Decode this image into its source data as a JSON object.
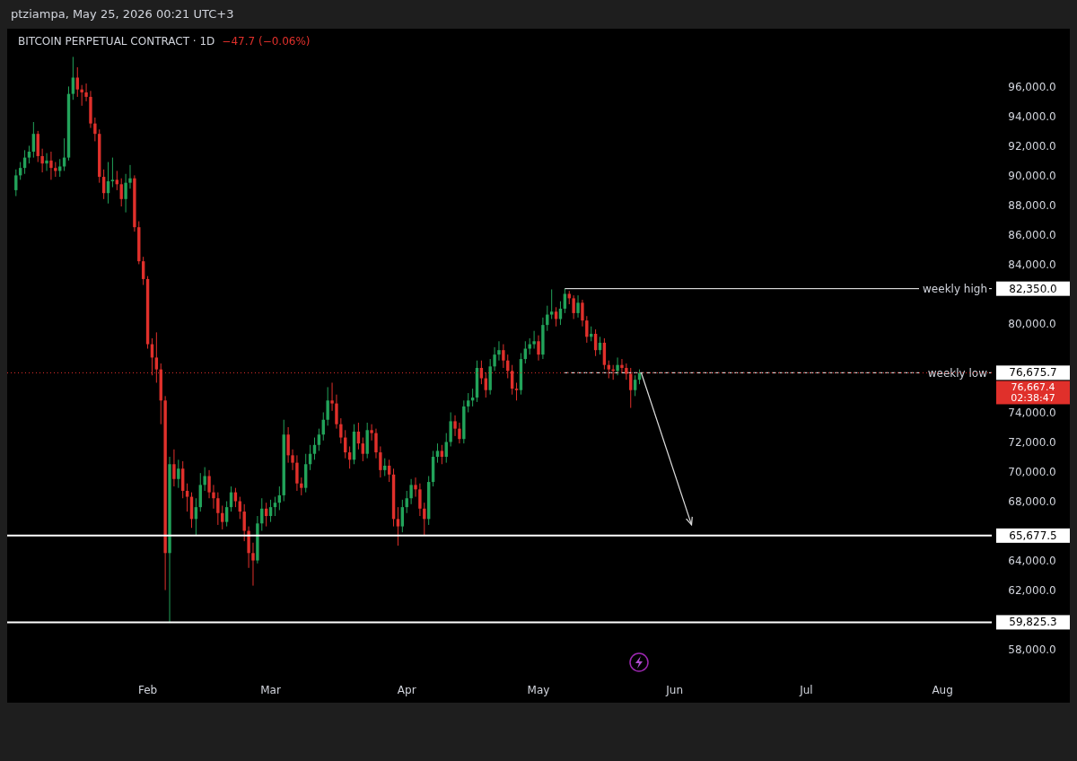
{
  "chart_data": {
    "type": "candlestick",
    "title": "BITCOIN PERPETUAL CONTRACT · 1D",
    "subtitle": "−47.7 (−0.06%)",
    "annotations": [
      "ptziampa, May 25, 2026 00:21 UTC+3",
      "76,667.4",
      "02:38:47"
    ],
    "xlim": [
      "2025-12-31",
      "2026-08-30"
    ],
    "xticks": [
      {
        "value": "2026-02-01",
        "label": "Feb"
      },
      {
        "value": "2026-03-01",
        "label": "Mar"
      },
      {
        "value": "2026-04-01",
        "label": "Apr"
      },
      {
        "value": "2026-05-01",
        "label": "May"
      },
      {
        "value": "2026-06-01",
        "label": "Jun"
      },
      {
        "value": "2026-07-01",
        "label": "Jul"
      },
      {
        "value": "2026-08-01",
        "label": "Aug"
      }
    ],
    "ylim": [
      54400,
      99900
    ],
    "yticks": [
      {
        "value": 59825.3,
        "label": "59,825.3"
      },
      {
        "value": 65677.5,
        "label": "65,677.5"
      },
      {
        "value": 76675.7,
        "label": "76,675.7"
      },
      {
        "value": 82350,
        "label": "82,350.0"
      },
      {
        "value": 58000,
        "label": "58,000.0"
      },
      {
        "value": 62000,
        "label": "62,000.0"
      },
      {
        "value": 64000,
        "label": "64,000.0"
      },
      {
        "value": 68000,
        "label": "68,000.0"
      },
      {
        "value": 70000,
        "label": "70,000.0"
      },
      {
        "value": 72000,
        "label": "72,000.0"
      },
      {
        "value": 74000,
        "label": "74,000.0"
      },
      {
        "value": 80000,
        "label": "80,000.0"
      },
      {
        "value": 84000,
        "label": "84,000.0"
      },
      {
        "value": 86000,
        "label": "86,000.0"
      },
      {
        "value": 88000,
        "label": "88,000.0"
      },
      {
        "value": 90000,
        "label": "90,000.0"
      },
      {
        "value": 92000,
        "label": "92,000.0"
      },
      {
        "value": 94000,
        "label": "94,000.0"
      },
      {
        "value": 96000,
        "label": "96,000.0"
      }
    ],
    "grid": false,
    "ref_lines": [
      {
        "axis": "y",
        "value": 82350,
        "label": "weekly high",
        "color": "#ffffff",
        "line_style": "solid"
      },
      {
        "axis": "y",
        "value": 76675.7,
        "label": "weekly low",
        "color": "#ffffff",
        "line_style": "dashed"
      },
      {
        "axis": "y",
        "value": 76667.4,
        "color": "#e0302b",
        "line_style": "dotted"
      },
      {
        "axis": "y",
        "value": 65677.5,
        "color": "#ffffff",
        "line_style": "solid"
      },
      {
        "axis": "y",
        "value": 59825.3,
        "color": "#ffffff",
        "line_style": "solid"
      }
    ],
    "x": [
      "2026-01-02",
      "2026-01-03",
      "2026-01-04",
      "2026-01-05",
      "2026-01-06",
      "2026-01-07",
      "2026-01-08",
      "2026-01-09",
      "2026-01-10",
      "2026-01-11",
      "2026-01-12",
      "2026-01-13",
      "2026-01-14",
      "2026-01-15",
      "2026-01-16",
      "2026-01-17",
      "2026-01-18",
      "2026-01-19",
      "2026-01-20",
      "2026-01-21",
      "2026-01-22",
      "2026-01-23",
      "2026-01-24",
      "2026-01-25",
      "2026-01-26",
      "2026-01-27",
      "2026-01-28",
      "2026-01-29",
      "2026-01-30",
      "2026-01-31",
      "2026-02-01",
      "2026-02-02",
      "2026-02-03",
      "2026-02-04",
      "2026-02-05",
      "2026-02-06",
      "2026-02-07",
      "2026-02-08",
      "2026-02-09",
      "2026-02-10",
      "2026-02-11",
      "2026-02-12",
      "2026-02-13",
      "2026-02-14",
      "2026-02-15",
      "2026-02-16",
      "2026-02-17",
      "2026-02-18",
      "2026-02-19",
      "2026-02-20",
      "2026-02-21",
      "2026-02-22",
      "2026-02-23",
      "2026-02-24",
      "2026-02-25",
      "2026-02-26",
      "2026-02-27",
      "2026-02-28",
      "2026-03-01",
      "2026-03-02",
      "2026-03-03",
      "2026-03-04",
      "2026-03-05",
      "2026-03-06",
      "2026-03-07",
      "2026-03-08",
      "2026-03-09",
      "2026-03-10",
      "2026-03-11",
      "2026-03-12",
      "2026-03-13",
      "2026-03-14",
      "2026-03-15",
      "2026-03-16",
      "2026-03-17",
      "2026-03-18",
      "2026-03-19",
      "2026-03-20",
      "2026-03-21",
      "2026-03-22",
      "2026-03-23",
      "2026-03-24",
      "2026-03-25",
      "2026-03-26",
      "2026-03-27",
      "2026-03-28",
      "2026-03-29",
      "2026-03-30",
      "2026-03-31",
      "2026-04-01",
      "2026-04-02",
      "2026-04-03",
      "2026-04-04",
      "2026-04-05",
      "2026-04-06",
      "2026-04-07",
      "2026-04-08",
      "2026-04-09",
      "2026-04-10",
      "2026-04-11",
      "2026-04-12",
      "2026-04-13",
      "2026-04-14",
      "2026-04-15",
      "2026-04-16",
      "2026-04-17",
      "2026-04-18",
      "2026-04-19",
      "2026-04-20",
      "2026-04-21",
      "2026-04-22",
      "2026-04-23",
      "2026-04-24",
      "2026-04-25",
      "2026-04-26",
      "2026-04-27",
      "2026-04-28",
      "2026-04-29",
      "2026-04-30",
      "2026-05-01",
      "2026-05-02",
      "2026-05-03",
      "2026-05-04",
      "2026-05-05",
      "2026-05-06",
      "2026-05-07",
      "2026-05-08",
      "2026-05-09",
      "2026-05-10",
      "2026-05-11",
      "2026-05-12",
      "2026-05-13",
      "2026-05-14",
      "2026-05-15",
      "2026-05-16",
      "2026-05-17",
      "2026-05-18",
      "2026-05-19",
      "2026-05-20",
      "2026-05-21",
      "2026-05-22",
      "2026-05-23",
      "2026-05-24"
    ],
    "ohlc": [
      [
        89000,
        90400,
        88600,
        90000
      ],
      [
        90000,
        90900,
        89700,
        90500
      ],
      [
        90500,
        91700,
        90100,
        91200
      ],
      [
        91200,
        92000,
        90800,
        91600
      ],
      [
        91600,
        93600,
        91200,
        92800
      ],
      [
        92800,
        93000,
        90900,
        91300
      ],
      [
        91300,
        91800,
        90200,
        90800
      ],
      [
        90800,
        91500,
        90300,
        91000
      ],
      [
        91000,
        91600,
        89700,
        90500
      ],
      [
        90500,
        90900,
        89900,
        90300
      ],
      [
        90300,
        91100,
        89900,
        90600
      ],
      [
        90600,
        92500,
        90300,
        91200
      ],
      [
        91200,
        96000,
        91000,
        95500
      ],
      [
        95500,
        98000,
        95100,
        96600
      ],
      [
        96600,
        97300,
        95300,
        95800
      ],
      [
        95800,
        96100,
        94700,
        95600
      ],
      [
        95600,
        96200,
        95000,
        95300
      ],
      [
        95300,
        95700,
        93200,
        93500
      ],
      [
        93500,
        93900,
        92300,
        92800
      ],
      [
        92800,
        93100,
        89500,
        89900
      ],
      [
        89900,
        90400,
        88400,
        88800
      ],
      [
        88800,
        90900,
        88100,
        89600
      ],
      [
        89600,
        91200,
        89200,
        89700
      ],
      [
        89700,
        90300,
        89000,
        89400
      ],
      [
        89400,
        89800,
        87900,
        88400
      ],
      [
        88400,
        90100,
        87500,
        89500
      ],
      [
        89500,
        90700,
        89100,
        89800
      ],
      [
        89800,
        90000,
        86200,
        86500
      ],
      [
        86500,
        86900,
        84000,
        84200
      ],
      [
        84200,
        84500,
        82600,
        83000
      ],
      [
        83000,
        83200,
        78300,
        78600
      ],
      [
        78600,
        79000,
        76500,
        77700
      ],
      [
        77700,
        79400,
        76000,
        76900
      ],
      [
        76900,
        77300,
        73200,
        74800
      ],
      [
        74800,
        75100,
        62000,
        64500
      ],
      [
        64500,
        71000,
        59825.3,
        70500
      ],
      [
        70500,
        71500,
        69000,
        69500
      ],
      [
        69500,
        70800,
        68900,
        70200
      ],
      [
        70200,
        70700,
        68200,
        68700
      ],
      [
        68700,
        69200,
        67300,
        68300
      ],
      [
        68300,
        68600,
        66200,
        66800
      ],
      [
        66800,
        68200,
        65700,
        67600
      ],
      [
        67600,
        69900,
        67300,
        69100
      ],
      [
        69100,
        70300,
        68700,
        69700
      ],
      [
        69700,
        70100,
        68200,
        68600
      ],
      [
        68600,
        69100,
        67500,
        68200
      ],
      [
        68200,
        68600,
        66400,
        67200
      ],
      [
        67200,
        67700,
        66100,
        66600
      ],
      [
        66600,
        68000,
        66300,
        67600
      ],
      [
        67600,
        69000,
        67300,
        68600
      ],
      [
        68600,
        68900,
        67600,
        68000
      ],
      [
        68000,
        68300,
        66800,
        67300
      ],
      [
        67300,
        67800,
        65300,
        66000
      ],
      [
        66000,
        66300,
        63500,
        64500
      ],
      [
        64500,
        65200,
        62300,
        64000
      ],
      [
        64000,
        67000,
        63800,
        66500
      ],
      [
        66500,
        68200,
        66000,
        67500
      ],
      [
        67500,
        67900,
        66300,
        67000
      ],
      [
        67000,
        68100,
        66600,
        67600
      ],
      [
        67600,
        68300,
        67000,
        67900
      ],
      [
        67900,
        69000,
        67400,
        68400
      ],
      [
        68400,
        73500,
        68000,
        72500
      ],
      [
        72500,
        73000,
        70600,
        71100
      ],
      [
        71100,
        71500,
        70100,
        70600
      ],
      [
        70600,
        71100,
        68700,
        69200
      ],
      [
        69200,
        69600,
        68400,
        68900
      ],
      [
        68900,
        71200,
        68600,
        70500
      ],
      [
        70500,
        71800,
        70100,
        71200
      ],
      [
        71200,
        72300,
        70800,
        71800
      ],
      [
        71800,
        72900,
        71400,
        72500
      ],
      [
        72500,
        74000,
        72100,
        73500
      ],
      [
        73500,
        75700,
        73100,
        74800
      ],
      [
        74800,
        76000,
        74100,
        74600
      ],
      [
        74600,
        75200,
        72900,
        73200
      ],
      [
        73200,
        73600,
        71900,
        72300
      ],
      [
        72300,
        72800,
        70900,
        71300
      ],
      [
        71300,
        71700,
        70200,
        70800
      ],
      [
        70800,
        73200,
        70500,
        72700
      ],
      [
        72700,
        73300,
        71500,
        71900
      ],
      [
        71900,
        72300,
        70700,
        71200
      ],
      [
        71200,
        73300,
        70900,
        72800
      ],
      [
        72800,
        73200,
        72100,
        72600
      ],
      [
        72600,
        72900,
        70900,
        71300
      ],
      [
        71300,
        71700,
        69600,
        70100
      ],
      [
        70100,
        70900,
        69700,
        70400
      ],
      [
        70400,
        70800,
        69300,
        69800
      ],
      [
        69800,
        70200,
        66300,
        66800
      ],
      [
        66800,
        67600,
        65000,
        66300
      ],
      [
        66300,
        68100,
        65900,
        67600
      ],
      [
        67600,
        68700,
        67200,
        68200
      ],
      [
        68200,
        69500,
        67800,
        69100
      ],
      [
        69100,
        69600,
        68300,
        68800
      ],
      [
        68800,
        69200,
        67000,
        67500
      ],
      [
        67500,
        67900,
        65700,
        66800
      ],
      [
        66800,
        69700,
        66400,
        69300
      ],
      [
        69300,
        71400,
        69000,
        71000
      ],
      [
        71000,
        71900,
        70600,
        71400
      ],
      [
        71400,
        71800,
        70500,
        71000
      ],
      [
        71000,
        72600,
        70600,
        72000
      ],
      [
        72000,
        74000,
        71700,
        73400
      ],
      [
        73400,
        73800,
        72400,
        72900
      ],
      [
        72900,
        73300,
        71900,
        72200
      ],
      [
        72200,
        74800,
        71900,
        74400
      ],
      [
        74400,
        75300,
        74000,
        74800
      ],
      [
        74800,
        75600,
        74400,
        75000
      ],
      [
        75000,
        77500,
        74700,
        77000
      ],
      [
        77000,
        77500,
        75900,
        76300
      ],
      [
        76300,
        76700,
        75000,
        75500
      ],
      [
        75500,
        77600,
        75200,
        77100
      ],
      [
        77100,
        78400,
        76800,
        77900
      ],
      [
        77900,
        78800,
        77500,
        78200
      ],
      [
        78200,
        78600,
        77000,
        77500
      ],
      [
        77500,
        77900,
        76300,
        76800
      ],
      [
        76800,
        77200,
        75200,
        75600
      ],
      [
        75600,
        76000,
        74800,
        75500
      ],
      [
        75500,
        78000,
        75200,
        77600
      ],
      [
        77600,
        78800,
        77300,
        78300
      ],
      [
        78300,
        79000,
        77900,
        78600
      ],
      [
        78600,
        79500,
        78300,
        78800
      ],
      [
        78800,
        79200,
        77500,
        77900
      ],
      [
        77900,
        80400,
        77600,
        79900
      ],
      [
        79900,
        81200,
        79500,
        80600
      ],
      [
        80600,
        82300,
        80300,
        80800
      ],
      [
        80800,
        81100,
        79800,
        80300
      ],
      [
        80300,
        81500,
        79900,
        81000
      ],
      [
        81000,
        82350,
        80700,
        82000
      ],
      [
        82000,
        82200,
        81300,
        81700
      ],
      [
        81700,
        81900,
        80300,
        80700
      ],
      [
        80700,
        81900,
        80400,
        81400
      ],
      [
        81400,
        81600,
        79800,
        80200
      ],
      [
        80200,
        80500,
        78700,
        79100
      ],
      [
        79100,
        79800,
        78800,
        79300
      ],
      [
        79300,
        79600,
        77800,
        78200
      ],
      [
        78200,
        79100,
        77900,
        78700
      ],
      [
        78700,
        79000,
        76900,
        77200
      ],
      [
        77200,
        77500,
        76300,
        76900
      ],
      [
        76900,
        77200,
        76200,
        76800
      ],
      [
        76800,
        77700,
        76500,
        77200
      ],
      [
        77200,
        77600,
        76700,
        77000
      ],
      [
        77000,
        77300,
        76200,
        76600
      ],
      [
        76600,
        77000,
        74300,
        75500
      ],
      [
        75500,
        76500,
        75100,
        76200
      ],
      [
        76200,
        76900,
        75900,
        76667.4
      ]
    ]
  }
}
